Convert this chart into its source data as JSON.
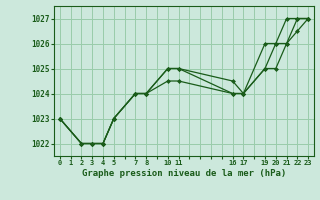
{
  "title": "Graphe pression niveau de la mer (hPa)",
  "background_color": "#cce8dc",
  "grid_color": "#99ccaa",
  "line_color": "#1a5c1a",
  "marker_color": "#1a5c1a",
  "ylim": [
    1021.5,
    1027.5
  ],
  "xlim": [
    -0.5,
    23.5
  ],
  "yticks": [
    1022,
    1023,
    1024,
    1025,
    1026,
    1027
  ],
  "xticks": [
    0,
    1,
    2,
    3,
    4,
    5,
    7,
    8,
    10,
    11,
    16,
    17,
    19,
    20,
    21,
    22,
    23
  ],
  "lines": [
    {
      "x": [
        0,
        2,
        3,
        4,
        5,
        7,
        8,
        10,
        11,
        16,
        17,
        19,
        20,
        21,
        22,
        23
      ],
      "y": [
        1023,
        1022,
        1022,
        1022,
        1023,
        1024,
        1024,
        1025,
        1025,
        1024.5,
        1024,
        1026,
        1026,
        1027,
        1027,
        1027
      ]
    },
    {
      "x": [
        0,
        2,
        3,
        4,
        5,
        7,
        8,
        10,
        11,
        16,
        17,
        19,
        20,
        21,
        22,
        23
      ],
      "y": [
        1023,
        1022,
        1022,
        1022,
        1023,
        1024,
        1024,
        1025,
        1025,
        1024,
        1024,
        1025,
        1026,
        1026,
        1027,
        1027
      ]
    },
    {
      "x": [
        0,
        2,
        3,
        4,
        5,
        7,
        8,
        10,
        11,
        16,
        17,
        19,
        20,
        21,
        22,
        23
      ],
      "y": [
        1023,
        1022,
        1022,
        1022,
        1023,
        1024,
        1024,
        1024.5,
        1024.5,
        1024,
        1024,
        1025,
        1025,
        1026,
        1026.5,
        1027
      ]
    }
  ]
}
